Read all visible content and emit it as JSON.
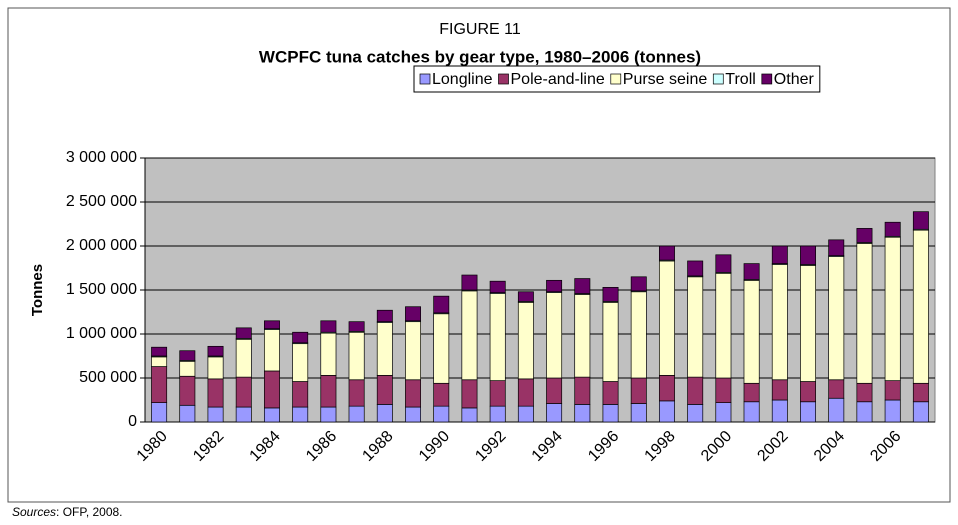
{
  "chart_data": {
    "type": "stacked_bar",
    "figure_label": "FIGURE 11",
    "title": "WCPFC tuna catches by gear type, 1980–2006 (tonnes)",
    "y_label": "Tonnes",
    "source": {
      "label": "Sources",
      "text": ": OFP, 2008."
    },
    "categories": [
      "1980",
      null,
      "1982",
      null,
      "1984",
      null,
      "1986",
      null,
      "1988",
      null,
      "1990",
      null,
      "1992",
      null,
      "1994",
      null,
      "1996",
      null,
      "1998",
      null,
      "2000",
      null,
      "2002",
      null,
      "2004",
      null,
      "2006",
      null
    ],
    "series": [
      {
        "name": "Longline",
        "color": "#9999ff",
        "values": [
          220000,
          190000,
          170000,
          170000,
          160000,
          170000,
          170000,
          180000,
          200000,
          170000,
          180000,
          160000,
          180000,
          180000,
          210000,
          200000,
          200000,
          210000,
          240000,
          200000,
          220000,
          230000,
          250000,
          230000,
          270000,
          230000,
          250000,
          230000
        ]
      },
      {
        "name": "Pole-and-line",
        "color": "#993366",
        "values": [
          410000,
          330000,
          320000,
          340000,
          420000,
          290000,
          360000,
          300000,
          330000,
          310000,
          260000,
          320000,
          290000,
          310000,
          290000,
          310000,
          260000,
          290000,
          290000,
          310000,
          280000,
          210000,
          230000,
          230000,
          210000,
          210000,
          220000,
          210000
        ]
      },
      {
        "name": "Purse seine",
        "color": "#ffffcc",
        "values": [
          110000,
          170000,
          250000,
          430000,
          470000,
          430000,
          480000,
          540000,
          600000,
          660000,
          790000,
          1010000,
          990000,
          870000,
          970000,
          940000,
          900000,
          980000,
          1300000,
          1140000,
          1190000,
          1170000,
          1310000,
          1320000,
          1400000,
          1590000,
          1630000,
          1740000
        ]
      },
      {
        "name": "Troll",
        "color": "#ccffff",
        "values": [
          10000,
          10000,
          10000,
          10000,
          10000,
          10000,
          10000,
          10000,
          10000,
          10000,
          10000,
          10000,
          10000,
          10000,
          10000,
          10000,
          10000,
          10000,
          10000,
          10000,
          10000,
          10000,
          10000,
          10000,
          10000,
          10000,
          10000,
          10000
        ]
      },
      {
        "name": "Other",
        "color": "#660066",
        "values": [
          100000,
          110000,
          110000,
          120000,
          90000,
          120000,
          130000,
          110000,
          130000,
          160000,
          190000,
          170000,
          130000,
          110000,
          130000,
          170000,
          160000,
          160000,
          160000,
          170000,
          200000,
          180000,
          200000,
          210000,
          180000,
          160000,
          160000,
          200000
        ]
      }
    ],
    "ylim": [
      0,
      3000000
    ],
    "yticks": [
      0,
      {
        "value": 500000,
        "label": "500 000"
      },
      {
        "value": 1000000,
        "label": "1 000 000"
      },
      {
        "value": 1500000,
        "label": "1 500 000"
      },
      {
        "value": 2000000,
        "label": "2 000 000"
      },
      {
        "value": 2500000,
        "label": "2 500 000"
      },
      {
        "value": 3000000,
        "label": "3 000 000"
      }
    ],
    "grid": true,
    "plot_background": "#c0c0c0",
    "legend": "top"
  }
}
